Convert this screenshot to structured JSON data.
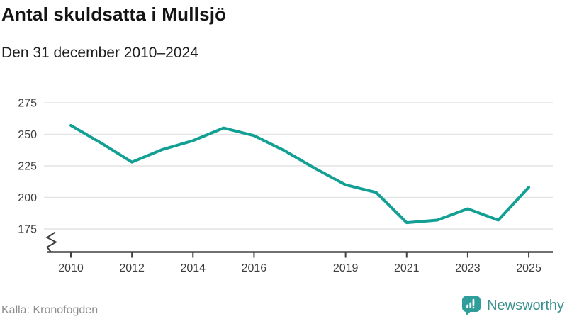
{
  "header": {
    "title": "Antal skuldsatta i Mullsjö",
    "subtitle": "Den 31 december 2010–2024"
  },
  "footer": {
    "source": "Källa: Kronofogden",
    "brand": "Newsworthy"
  },
  "colors": {
    "line": "#12a094",
    "grid": "#e4e4e4",
    "axis": "#404040",
    "tick_label": "#3d3d3d",
    "title_text": "#141414",
    "subtitle_text": "#1f1f1f",
    "source_text": "#8d8d8d",
    "brand_teal": "#38918e",
    "icon_teal": "#2f9e9b"
  },
  "chart_data": {
    "type": "line",
    "title": "Antal skuldsatta i Mullsjö",
    "subtitle": "Den 31 december 2010–2024",
    "x": [
      2010,
      2011,
      2012,
      2013,
      2014,
      2015,
      2016,
      2017,
      2018,
      2019,
      2020,
      2021,
      2022,
      2023,
      2024,
      2025
    ],
    "y": [
      257,
      243,
      228,
      238,
      245,
      255,
      249,
      237,
      223,
      210,
      204,
      180,
      182,
      191,
      182,
      208
    ],
    "x_tick_labels": [
      2010,
      2012,
      2014,
      2016,
      2019,
      2021,
      2023,
      2025
    ],
    "y_ticks": [
      175,
      200,
      225,
      250,
      275
    ],
    "ylim": [
      163,
      283
    ],
    "xlabel": "",
    "ylabel": "",
    "grid": "horizontal",
    "legend": "none",
    "axis_break": true,
    "line_color": "#12a094"
  }
}
